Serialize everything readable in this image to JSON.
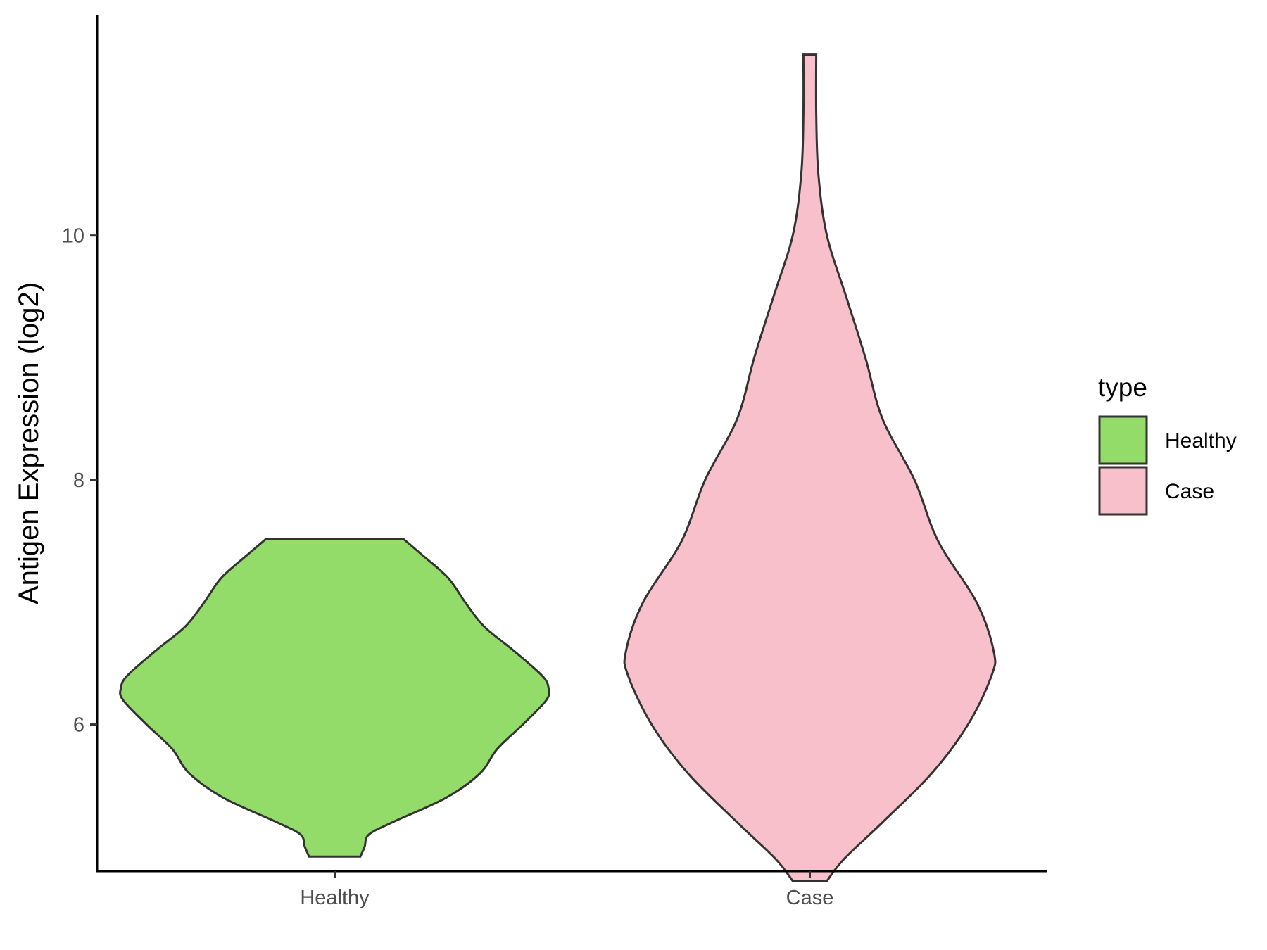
{
  "chart_data": {
    "type": "violin",
    "title": "",
    "xlabel": "",
    "ylabel": "Antigen Expression (log2)",
    "categories": [
      "Healthy",
      "Case"
    ],
    "yticks": [
      6,
      8,
      10
    ],
    "ylim": [
      4.8,
      11.8
    ],
    "grid": false,
    "legend": {
      "title": "type",
      "position": "right",
      "entries": [
        {
          "label": "Healthy",
          "color": "#93dc6a"
        },
        {
          "label": "Case",
          "color": "#f8c0cb"
        }
      ]
    },
    "series": [
      {
        "category": "Healthy",
        "color": "#93dc6a",
        "y_min": 4.92,
        "y_max": 7.52,
        "density_profile": [
          [
            4.92,
            0.12
          ],
          [
            5.0,
            0.14
          ],
          [
            5.1,
            0.16
          ],
          [
            5.2,
            0.27
          ],
          [
            5.4,
            0.52
          ],
          [
            5.6,
            0.68
          ],
          [
            5.8,
            0.76
          ],
          [
            6.0,
            0.88
          ],
          [
            6.2,
            0.99
          ],
          [
            6.3,
            1.0
          ],
          [
            6.4,
            0.97
          ],
          [
            6.6,
            0.84
          ],
          [
            6.8,
            0.7
          ],
          [
            7.0,
            0.61
          ],
          [
            7.2,
            0.53
          ],
          [
            7.4,
            0.4
          ],
          [
            7.52,
            0.32
          ]
        ]
      },
      {
        "category": "Case",
        "color": "#f8c0cb",
        "y_min": 4.72,
        "y_max": 11.48,
        "density_profile": [
          [
            4.72,
            0.08
          ],
          [
            4.9,
            0.16
          ],
          [
            5.2,
            0.34
          ],
          [
            5.6,
            0.57
          ],
          [
            6.0,
            0.74
          ],
          [
            6.4,
            0.85
          ],
          [
            6.6,
            0.86
          ],
          [
            7.0,
            0.78
          ],
          [
            7.5,
            0.6
          ],
          [
            8.0,
            0.49
          ],
          [
            8.5,
            0.34
          ],
          [
            9.0,
            0.26
          ],
          [
            9.5,
            0.17
          ],
          [
            10.0,
            0.08
          ],
          [
            10.5,
            0.04
          ],
          [
            11.0,
            0.03
          ],
          [
            11.48,
            0.03
          ]
        ]
      }
    ]
  }
}
